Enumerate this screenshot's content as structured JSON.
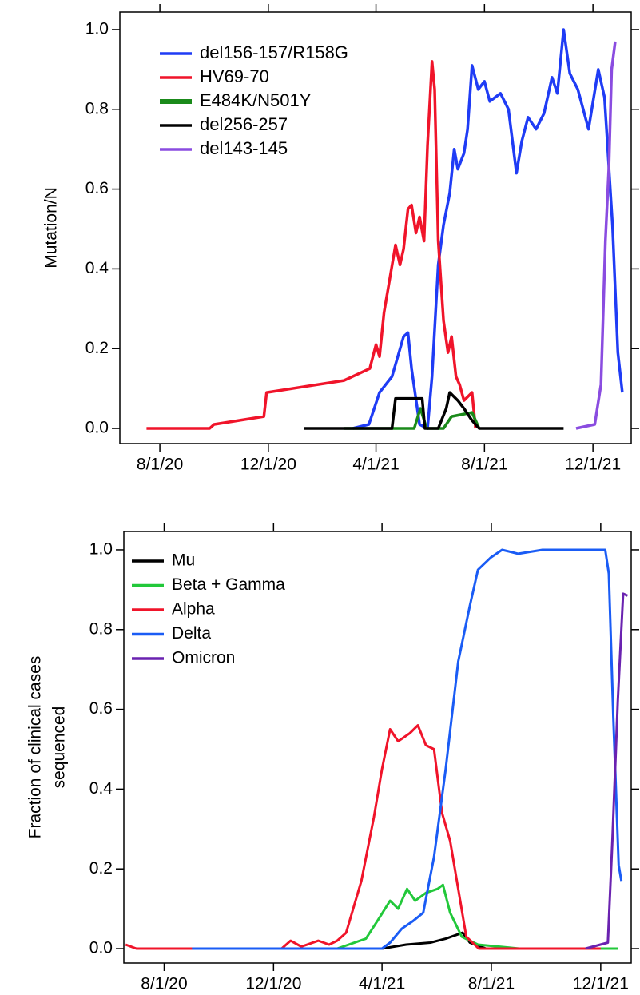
{
  "chart_data": [
    {
      "type": "line",
      "ylabel": [
        "Mutation/N"
      ],
      "legend": "upper left",
      "xlim": [
        "2020-06-17",
        "2022-01-13"
      ],
      "ylim": [
        -0.038,
        1.044
      ],
      "xticks": [
        {
          "value": "2020-08-01",
          "label": "8/1/20"
        },
        {
          "value": "2020-12-01",
          "label": "12/1/20"
        },
        {
          "value": "2021-04-01",
          "label": "4/1/21"
        },
        {
          "value": "2021-08-01",
          "label": "8/1/21"
        },
        {
          "value": "2021-12-01",
          "label": "12/1/21"
        }
      ],
      "yticks": [
        {
          "value": 0,
          "label": "0.0"
        },
        {
          "value": 0.2,
          "label": "0.2"
        },
        {
          "value": 0.4,
          "label": "0.4"
        },
        {
          "value": 0.6,
          "label": "0.6"
        },
        {
          "value": 0.8,
          "label": "0.8"
        },
        {
          "value": 1,
          "label": "1.0"
        }
      ],
      "series": [
        {
          "name": "del156-157/R158G",
          "color": "#1f3cf5",
          "x": [
            "2021-03-06",
            "2021-03-24",
            "2021-04-05",
            "2021-04-19",
            "2021-05-02",
            "2021-05-07",
            "2021-05-11",
            "2021-05-20",
            "2021-05-29",
            "2021-06-03",
            "2021-06-10",
            "2021-06-16",
            "2021-06-23",
            "2021-06-28",
            "2021-07-02",
            "2021-07-09",
            "2021-07-13",
            "2021-07-18",
            "2021-07-25",
            "2021-08-01",
            "2021-08-07",
            "2021-08-19",
            "2021-08-28",
            "2021-09-06",
            "2021-09-12",
            "2021-09-19",
            "2021-09-28",
            "2021-10-07",
            "2021-10-16",
            "2021-10-22",
            "2021-10-29",
            "2021-11-05",
            "2021-11-14",
            "2021-11-26",
            "2021-12-07",
            "2021-12-14",
            "2021-12-23",
            "2021-12-29",
            "2022-01-03"
          ],
          "values": [
            0,
            0.01,
            0.09,
            0.13,
            0.23,
            0.24,
            0.15,
            0.01,
            0,
            0.13,
            0.41,
            0.51,
            0.59,
            0.7,
            0.65,
            0.69,
            0.75,
            0.91,
            0.85,
            0.87,
            0.82,
            0.84,
            0.8,
            0.64,
            0.72,
            0.78,
            0.75,
            0.79,
            0.88,
            0.84,
            1.0,
            0.89,
            0.85,
            0.75,
            0.9,
            0.83,
            0.51,
            0.19,
            0.09
          ]
        },
        {
          "name": "HV69-70",
          "color": "#f0142a",
          "x": [
            "2020-07-17",
            "2020-09-26",
            "2020-10-01",
            "2020-11-26",
            "2020-11-29",
            "2021-02-24",
            "2021-03-25",
            "2021-04-01",
            "2021-04-05",
            "2021-04-10",
            "2021-04-23",
            "2021-04-28",
            "2021-05-02",
            "2021-05-07",
            "2021-05-11",
            "2021-05-16",
            "2021-05-20",
            "2021-05-25",
            "2021-05-29",
            "2021-06-03",
            "2021-06-06",
            "2021-06-10",
            "2021-06-16",
            "2021-06-21",
            "2021-06-25",
            "2021-06-30",
            "2021-07-04",
            "2021-07-09",
            "2021-07-18",
            "2021-07-22"
          ],
          "values": [
            0,
            0,
            0.01,
            0.03,
            0.09,
            0.12,
            0.15,
            0.21,
            0.18,
            0.29,
            0.46,
            0.41,
            0.45,
            0.55,
            0.56,
            0.49,
            0.53,
            0.47,
            0.71,
            0.92,
            0.85,
            0.47,
            0.27,
            0.19,
            0.23,
            0.13,
            0.11,
            0.07,
            0.09,
            0
          ]
        },
        {
          "name": "E484K/N501Y",
          "color": "#1a8a1a",
          "x": [
            "2021-02-24",
            "2021-05-14",
            "2021-05-21",
            "2021-05-28",
            "2021-06-16",
            "2021-06-25",
            "2021-07-18",
            "2021-07-26"
          ],
          "values": [
            0,
            0,
            0.05,
            0,
            0,
            0.03,
            0.04,
            0
          ]
        },
        {
          "name": "del256-257",
          "color": "#000000",
          "x": [
            "2021-01-10",
            "2021-04-19",
            "2021-04-23",
            "2021-05-23",
            "2021-05-26",
            "2021-06-10",
            "2021-06-19",
            "2021-06-23",
            "2021-07-02",
            "2021-07-09",
            "2021-07-18",
            "2021-07-26",
            "2021-10-29"
          ],
          "values": [
            0,
            0,
            0.075,
            0.075,
            0,
            0,
            0.05,
            0.09,
            0.07,
            0.05,
            0.02,
            0,
            0
          ]
        },
        {
          "name": "del143-145",
          "color": "#8a4ce0",
          "x": [
            "2021-11-12",
            "2021-12-03",
            "2021-12-10",
            "2021-12-15",
            "2021-12-19",
            "2021-12-22",
            "2021-12-26"
          ],
          "values": [
            0,
            0.01,
            0.11,
            0.47,
            0.66,
            0.9,
            0.97
          ]
        }
      ]
    },
    {
      "type": "line",
      "ylabel": [
        "Fraction of clinical cases",
        "sequenced"
      ],
      "legend": "upper left",
      "xlim": [
        "2020-06-17",
        "2022-01-04"
      ],
      "ylim": [
        -0.036,
        1.046
      ],
      "xticks": [
        {
          "value": "2020-08-01",
          "label": "8/1/20"
        },
        {
          "value": "2020-12-01",
          "label": "12/1/20"
        },
        {
          "value": "2021-04-01",
          "label": "4/1/21"
        },
        {
          "value": "2021-08-01",
          "label": "8/1/21"
        },
        {
          "value": "2021-12-01",
          "label": "12/1/21"
        }
      ],
      "yticks": [
        {
          "value": 0,
          "label": "0.0"
        },
        {
          "value": 0.2,
          "label": "0.2"
        },
        {
          "value": 0.4,
          "label": "0.4"
        },
        {
          "value": 0.6,
          "label": "0.6"
        },
        {
          "value": 0.8,
          "label": "0.8"
        },
        {
          "value": 1,
          "label": "1.0"
        }
      ],
      "series": [
        {
          "name": "Mu",
          "color": "#000000",
          "x": [
            "2021-04-01",
            "2021-04-28",
            "2021-05-25",
            "2021-06-11",
            "2021-06-30",
            "2021-07-08",
            "2021-07-26",
            "2021-11-15"
          ],
          "values": [
            0,
            0.01,
            0.015,
            0.025,
            0.04,
            0.015,
            0,
            0
          ]
        },
        {
          "name": "Beta + Gamma",
          "color": "#22c83a",
          "x": [
            "2021-02-10",
            "2021-03-14",
            "2021-03-27",
            "2021-04-10",
            "2021-04-19",
            "2021-04-29",
            "2021-05-08",
            "2021-05-20",
            "2021-06-02",
            "2021-06-08",
            "2021-06-16",
            "2021-06-29",
            "2021-07-17",
            "2021-09-01",
            "2021-12-20"
          ],
          "values": [
            0,
            0.025,
            0.07,
            0.12,
            0.1,
            0.15,
            0.12,
            0.14,
            0.15,
            0.16,
            0.09,
            0.03,
            0.01,
            0,
            0
          ]
        },
        {
          "name": "Alpha",
          "color": "#f0142a",
          "x": [
            "2020-06-19",
            "2020-07-01",
            "2020-12-10",
            "2020-12-20",
            "2021-01-01",
            "2021-01-20",
            "2021-02-01",
            "2021-02-10",
            "2021-02-20",
            "2021-03-09",
            "2021-03-23",
            "2021-04-01",
            "2021-04-10",
            "2021-04-19",
            "2021-05-02",
            "2021-05-11",
            "2021-05-20",
            "2021-05-29",
            "2021-06-07",
            "2021-06-16",
            "2021-06-25",
            "2021-07-04",
            "2021-07-18",
            "2021-12-01"
          ],
          "values": [
            0.01,
            0,
            0,
            0.02,
            0.005,
            0.02,
            0.01,
            0.02,
            0.04,
            0.17,
            0.33,
            0.45,
            0.55,
            0.52,
            0.54,
            0.56,
            0.51,
            0.5,
            0.34,
            0.27,
            0.15,
            0.03,
            0,
            0
          ]
        },
        {
          "name": "Delta",
          "color": "#1a5cf5",
          "x": [
            "2020-09-01",
            "2021-04-01",
            "2021-04-10",
            "2021-04-23",
            "2021-05-06",
            "2021-05-17",
            "2021-05-29",
            "2021-06-11",
            "2021-06-25",
            "2021-07-08",
            "2021-07-17",
            "2021-07-31",
            "2021-08-13",
            "2021-08-31",
            "2021-09-27",
            "2021-10-15",
            "2021-11-20",
            "2021-12-06",
            "2021-12-10",
            "2021-12-15",
            "2021-12-21",
            "2021-12-24"
          ],
          "values": [
            0,
            0,
            0.015,
            0.05,
            0.07,
            0.09,
            0.23,
            0.45,
            0.72,
            0.86,
            0.95,
            0.98,
            1.0,
            0.99,
            1.0,
            1.0,
            1.0,
            1.0,
            0.94,
            0.58,
            0.21,
            0.17
          ]
        },
        {
          "name": "Omicron",
          "color": "#6a22b0",
          "x": [
            "2021-11-14",
            "2021-12-09",
            "2021-12-14",
            "2021-12-20",
            "2021-12-26",
            "2021-12-31"
          ],
          "values": [
            0,
            0.015,
            0.27,
            0.62,
            0.89,
            0.885
          ]
        }
      ]
    }
  ]
}
